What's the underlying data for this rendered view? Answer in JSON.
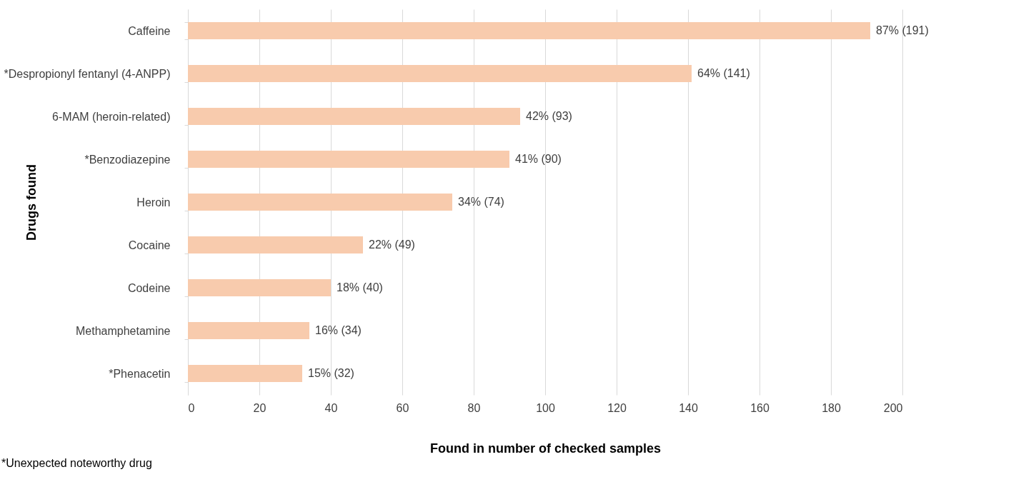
{
  "chart_data": {
    "type": "bar",
    "orientation": "horizontal",
    "xlabel": "Found in number of checked samples",
    "ylabel": "Drugs found",
    "categories": [
      "Caffeine",
      "*Despropionyl fentanyl (4-ANPP)",
      "6-MAM (heroin-related)",
      "*Benzodiazepine",
      "Heroin",
      "Cocaine",
      "Codeine",
      "Methamphetamine",
      "*Phenacetin"
    ],
    "values": [
      191,
      141,
      93,
      90,
      74,
      49,
      40,
      34,
      32
    ],
    "value_labels": [
      "87% (191)",
      "64% (141)",
      "42% (93)",
      "41% (90)",
      "34% (74)",
      "22% (49)",
      "18% (40)",
      "16% (34)",
      "15% (32)"
    ],
    "color": "#f8cbad",
    "xlim": [
      0,
      200
    ],
    "xticks": [
      0,
      20,
      40,
      60,
      80,
      100,
      120,
      140,
      160,
      180,
      200
    ],
    "grid": "x",
    "annotations": [
      "*Unexpected noteworthy drug"
    ]
  }
}
